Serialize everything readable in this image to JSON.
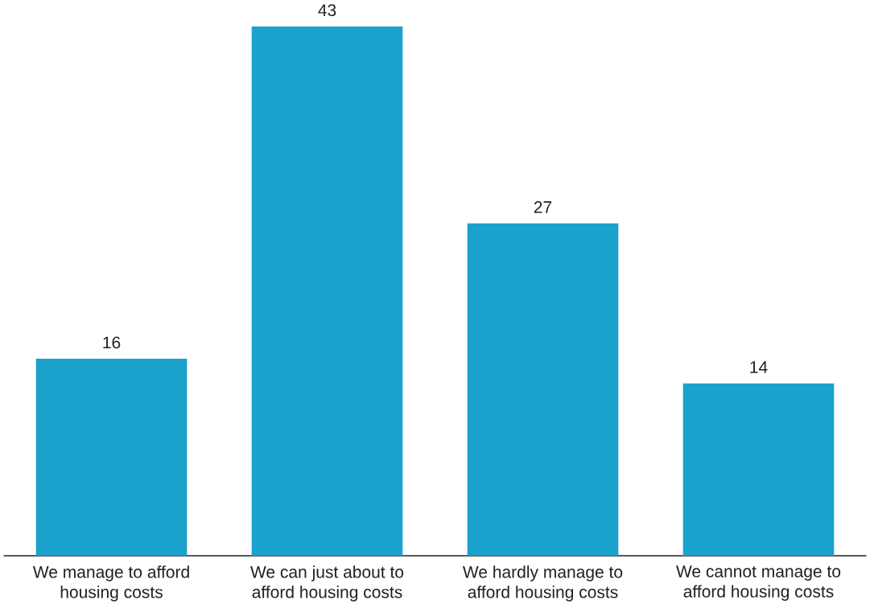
{
  "chart_data": {
    "type": "bar",
    "categories": [
      "We manage to afford housing costs",
      "We can just about to afford housing costs",
      "We hardly manage to afford housing costs",
      "We cannot manage to afford housing costs"
    ],
    "values": [
      16,
      43,
      27,
      14
    ],
    "color": "#1aa1cc",
    "data_labels": true
  }
}
